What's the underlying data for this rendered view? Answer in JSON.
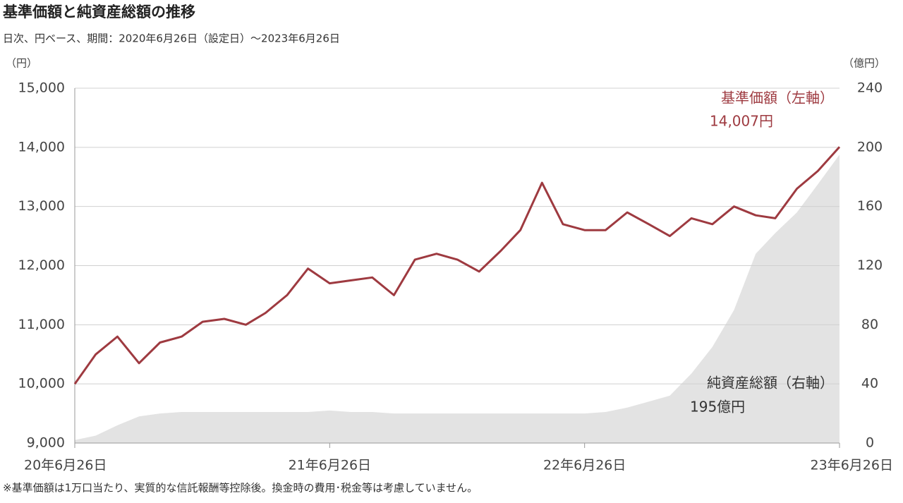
{
  "chart_data": {
    "type": "line",
    "title": "基準価額と純資産総額の推移",
    "subtitle": "日次、円ベース、期間：2020年6月26日（設定日）～2023年6月26日",
    "y_unit": "（円）",
    "y2_unit": "（億円）",
    "footnote": "※基準価額は1万口当たり、実質的な信託報酬等控除後。換金時の費用･税金等は考慮していません。",
    "x": [
      "2020-06-26",
      "2020-07-26",
      "2020-08-26",
      "2020-09-26",
      "2020-10-26",
      "2020-11-26",
      "2020-12-26",
      "2021-01-26",
      "2021-02-26",
      "2021-03-26",
      "2021-04-26",
      "2021-05-26",
      "2021-06-26",
      "2021-07-26",
      "2021-08-26",
      "2021-09-26",
      "2021-10-26",
      "2021-11-26",
      "2021-12-26",
      "2022-01-26",
      "2022-02-26",
      "2022-03-26",
      "2022-04-26",
      "2022-05-26",
      "2022-06-26",
      "2022-07-26",
      "2022-08-26",
      "2022-09-26",
      "2022-10-26",
      "2022-11-26",
      "2022-12-26",
      "2023-01-26",
      "2023-02-26",
      "2023-03-26",
      "2023-04-26",
      "2023-05-26",
      "2023-06-26"
    ],
    "series": [
      {
        "name": "基準価額（左軸）",
        "color": "#9e3a40",
        "axis": "y",
        "values": [
          10000,
          10500,
          10800,
          10350,
          10700,
          10800,
          11050,
          11100,
          11000,
          11200,
          11500,
          11950,
          11700,
          11750,
          11800,
          11500,
          12100,
          12200,
          12100,
          11900,
          12250,
          12600,
          13400,
          12700,
          12600,
          12600,
          12900,
          12700,
          12500,
          12800,
          12700,
          13000,
          12850,
          12800,
          13300,
          13600,
          14007
        ]
      },
      {
        "name": "純資産総額（右軸）",
        "color": "#e3e3e3",
        "axis": "y2",
        "type": "area",
        "values": [
          2,
          5,
          12,
          18,
          20,
          21,
          21,
          21,
          21,
          21,
          21,
          21,
          22,
          21,
          21,
          20,
          20,
          20,
          20,
          20,
          20,
          20,
          20,
          20,
          20,
          21,
          24,
          28,
          32,
          47,
          65,
          90,
          128,
          142,
          156,
          175,
          195
        ]
      }
    ],
    "annotations": [
      "14,007円",
      "195億円"
    ],
    "xlim": [
      "2020-06-26",
      "2023-06-26"
    ],
    "xticks": [
      {
        "value": "2020-06-26",
        "label": "20年6月26日"
      },
      {
        "value": "2021-06-26",
        "label": "21年6月26日"
      },
      {
        "value": "2022-06-26",
        "label": "22年6月26日"
      },
      {
        "value": "2023-06-26",
        "label": "23年6月26日"
      }
    ],
    "ylim": [
      9000,
      15000
    ],
    "yticks": [
      {
        "value": 9000,
        "label": "9,000"
      },
      {
        "value": 10000,
        "label": "10,000"
      },
      {
        "value": 11000,
        "label": "11,000"
      },
      {
        "value": 12000,
        "label": "12,000"
      },
      {
        "value": 13000,
        "label": "13,000"
      },
      {
        "value": 14000,
        "label": "14,000"
      },
      {
        "value": 15000,
        "label": "15,000"
      }
    ],
    "y2lim": [
      0,
      240
    ],
    "y2ticks": [
      0,
      40,
      80,
      120,
      160,
      200,
      240
    ],
    "grid": true
  }
}
